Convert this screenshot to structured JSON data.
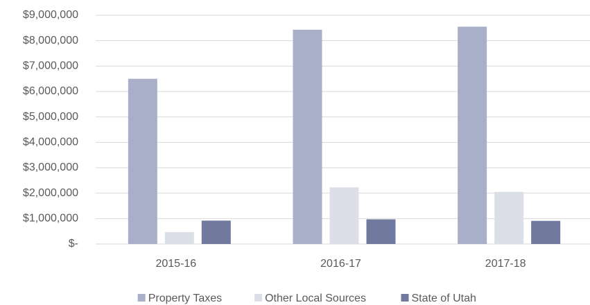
{
  "chart_data": {
    "type": "bar",
    "categories": [
      "2015-16",
      "2016-17",
      "2017-18"
    ],
    "series": [
      {
        "name": "Property Taxes",
        "color": "#a9afc9",
        "values": [
          6500000,
          8430000,
          8550000
        ]
      },
      {
        "name": "Other Local Sources",
        "color": "#dcdfe8",
        "values": [
          470000,
          2230000,
          2050000
        ]
      },
      {
        "name": "State of Utah",
        "color": "#71799f",
        "values": [
          920000,
          970000,
          910000
        ]
      }
    ],
    "ylim": [
      0,
      9000000
    ],
    "yticks": [
      {
        "value": 0,
        "label": "$-"
      },
      {
        "value": 1000000,
        "label": "$1,000,000"
      },
      {
        "value": 2000000,
        "label": "$2,000,000"
      },
      {
        "value": 3000000,
        "label": "$3,000,000"
      },
      {
        "value": 4000000,
        "label": "$4,000,000"
      },
      {
        "value": 5000000,
        "label": "$5,000,000"
      },
      {
        "value": 6000000,
        "label": "$6,000,000"
      },
      {
        "value": 7000000,
        "label": "$7,000,000"
      },
      {
        "value": 8000000,
        "label": "$8,000,000"
      },
      {
        "value": 9000000,
        "label": "$9,000,000"
      }
    ],
    "grid": true,
    "legend": "bottom"
  }
}
